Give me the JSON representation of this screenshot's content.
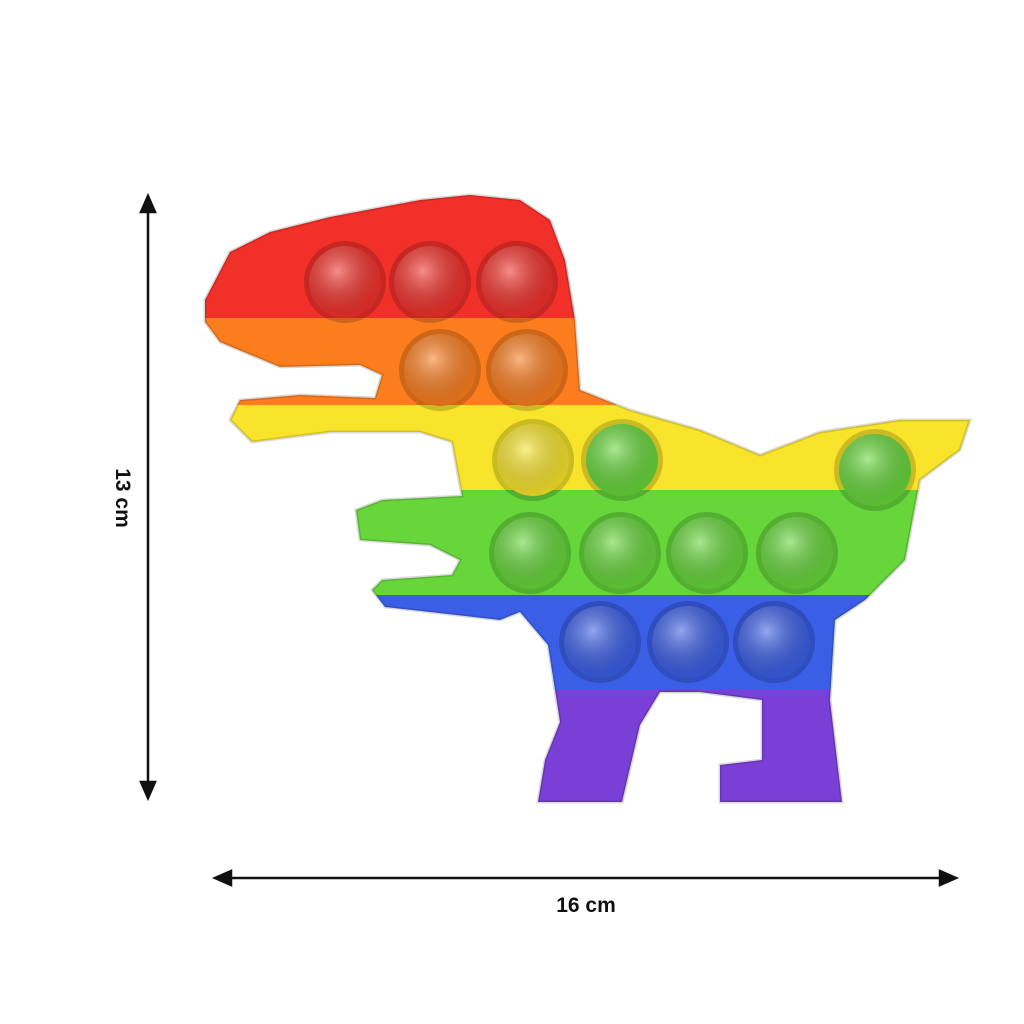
{
  "dimensions": {
    "height_label": "13 cm",
    "width_label": "16 cm"
  },
  "product": {
    "shape": "dinosaur",
    "band_colors": [
      "#f2302a",
      "#fb7d1e",
      "#f8e42a",
      "#66d63a",
      "#3a5ee6",
      "#7a3fd6"
    ],
    "bubble_rows": [
      {
        "color": "#f2302a",
        "count": 3
      },
      {
        "color": "#fb7d1e",
        "count": 2
      },
      {
        "color": "#66d63a",
        "count": 3
      },
      {
        "color": "#66d63a",
        "count": 4
      },
      {
        "color": "#3a5ee6",
        "count": 3
      }
    ]
  }
}
